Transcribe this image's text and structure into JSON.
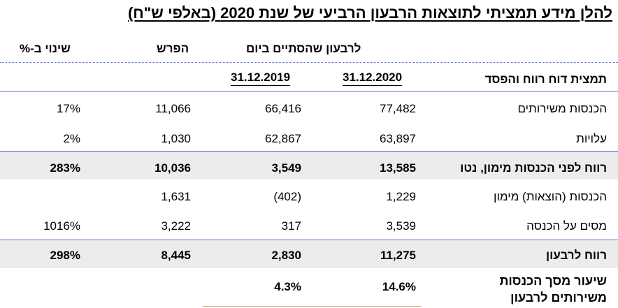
{
  "title": "להלן מידע תמציתי לתוצאות הרבעון הרביעי של שנת 2020 (באלפי ש\"ח)",
  "headers": {
    "change": "שינוי ב-%",
    "diff": "הפרש",
    "quarter": "לרבעון שהסתיים ביום",
    "date_2019": "31.12.2019",
    "date_2020": "31.12.2020",
    "statement": "תמצית דוח רווח והפסד"
  },
  "rows": [
    {
      "label": "הכנסות משירותים",
      "v2020": "77,482",
      "v2019": "66,416",
      "diff": "11,066",
      "change": "17%"
    },
    {
      "label": "עלויות",
      "v2020": "63,897",
      "v2019": "62,867",
      "diff": "1,030",
      "change": "2%"
    },
    {
      "label": "רווח לפני הכנסות מימון, נטו",
      "v2020": "13,585",
      "v2019": "3,549",
      "diff": "10,036",
      "change": "283%"
    },
    {
      "label": "הכנסות (הוצאות) מימון",
      "v2020": "1,229",
      "v2019": "(402)",
      "diff": "1,631",
      "change": ""
    },
    {
      "label": "מסים על הכנסה",
      "v2020": "3,539",
      "v2019": "317",
      "diff": "3,222",
      "change": "1016%"
    },
    {
      "label": "רווח לרבעון",
      "v2020": "11,275",
      "v2019": "2,830",
      "diff": "8,445",
      "change": "298%"
    }
  ],
  "margin_row": {
    "label_line1": "שיעור מסך הכנסות",
    "label_line2": "משירותים לרבעון",
    "v2020": "14.6%",
    "v2019": "4.3%"
  }
}
